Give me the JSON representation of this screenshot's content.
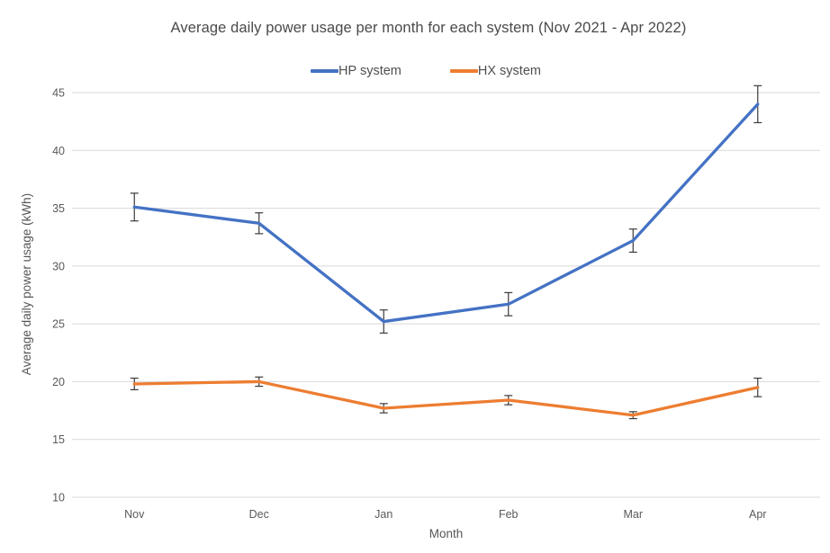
{
  "chart_data": {
    "type": "line",
    "title": "Average daily power usage per month for each system (Nov 2021 - Apr 2022)",
    "xlabel": "Month",
    "ylabel": "Average daily power usage (kWh)",
    "categories": [
      "Nov",
      "Dec",
      "Jan",
      "Feb",
      "Mar",
      "Apr"
    ],
    "series": [
      {
        "name": "HP system",
        "color": "#4472C4",
        "values": [
          35.1,
          33.7,
          25.2,
          26.7,
          32.2,
          44.0
        ],
        "error": [
          1.2,
          0.9,
          1.0,
          1.0,
          1.0,
          1.6
        ]
      },
      {
        "name": "HX system",
        "color": "#ED7D31",
        "values": [
          19.8,
          20.0,
          17.7,
          18.4,
          17.1,
          19.5
        ],
        "error": [
          0.5,
          0.4,
          0.4,
          0.4,
          0.3,
          0.8
        ]
      }
    ],
    "ylim": [
      10,
      45
    ],
    "yticks": [
      10,
      15,
      20,
      25,
      30,
      35,
      40,
      45
    ],
    "grid": true,
    "legend_position": "top",
    "gridline_color": "#D9D9D9",
    "text_color": "#595959",
    "error_bar_color": "#3b3b3b"
  }
}
